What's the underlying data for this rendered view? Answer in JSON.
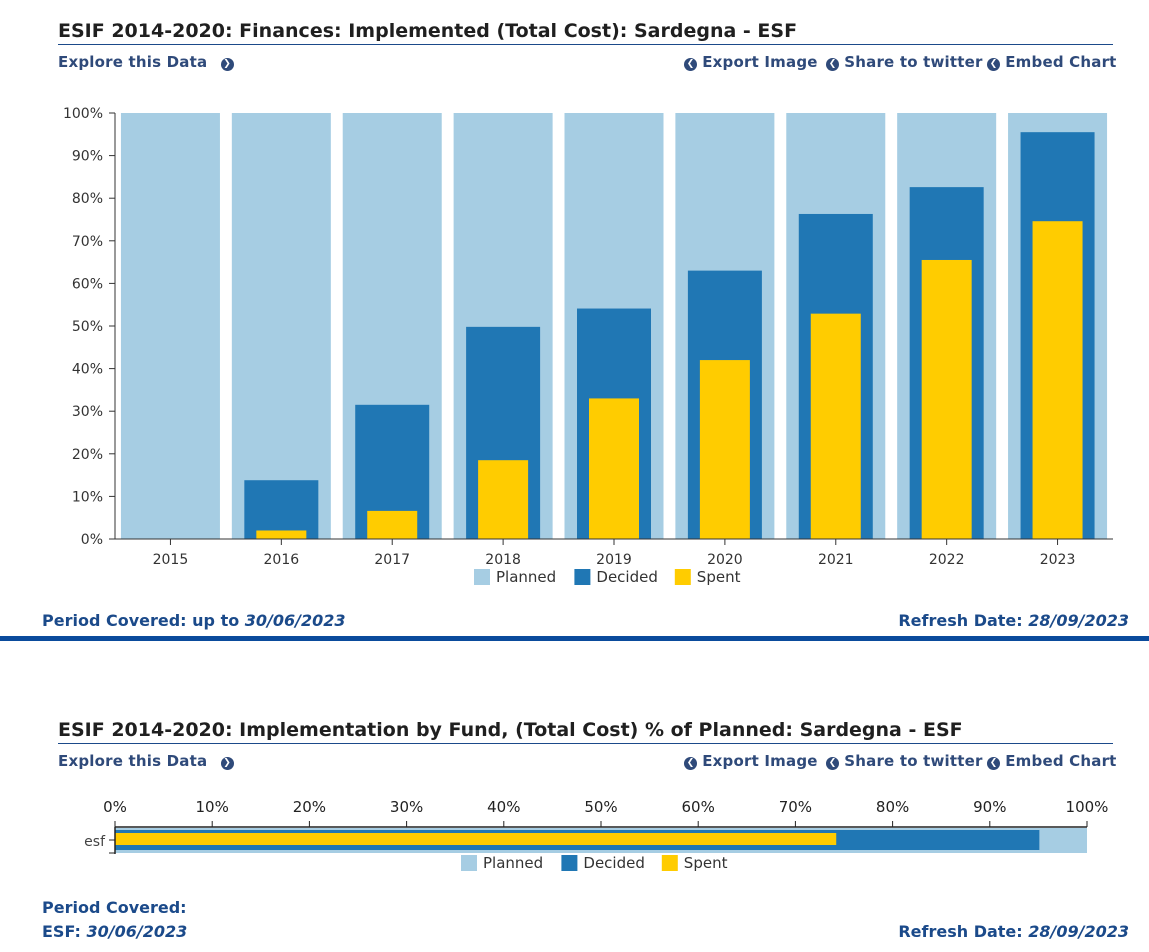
{
  "panel1": {
    "title": "ESIF 2014-2020: Finances: Implemented (Total Cost): Sardegna - ESF",
    "explore_label": "Explore this Data",
    "export_label": "Export Image",
    "share_label": "Share to twitter",
    "embed_label": "Embed Chart",
    "period_label": "Period Covered: up to",
    "period_value": "30/06/2023",
    "refresh_label": "Refresh Date:",
    "refresh_value": "28/09/2023"
  },
  "panel2": {
    "title": "ESIF 2014-2020: Implementation by Fund, (Total Cost) % of Planned: Sardegna - ESF",
    "explore_label": "Explore this Data",
    "export_label": "Export Image",
    "share_label": "Share to twitter",
    "embed_label": "Embed Chart",
    "period_label": "Period Covered:",
    "period_fund_label": "ESF:",
    "period_value": "30/06/2023",
    "refresh_label": "Refresh Date:",
    "refresh_value": "28/09/2023"
  },
  "colors": {
    "planned": "#a6cde3",
    "decided": "#2077b4",
    "spent": "#ffcc00",
    "accent": "#0a4b9c",
    "link": "#2f4a7a"
  },
  "icons": {
    "explore": "chevron-right-circle-icon",
    "action": "chevron-left-circle-icon"
  },
  "chart_data": [
    {
      "type": "bar",
      "categories": [
        "2015",
        "2016",
        "2017",
        "2018",
        "2019",
        "2020",
        "2021",
        "2022",
        "2023"
      ],
      "series": [
        {
          "name": "Planned",
          "values": [
            100,
            100,
            100,
            100,
            100,
            100,
            100,
            100,
            100
          ]
        },
        {
          "name": "Decided",
          "values": [
            0,
            13.8,
            31.5,
            49.8,
            54.1,
            63,
            76.3,
            82.6,
            95.5
          ]
        },
        {
          "name": "Spent",
          "values": [
            0,
            2,
            6.6,
            18.5,
            33,
            42,
            52.9,
            65.5,
            74.6
          ]
        }
      ],
      "yticks": [
        "0%",
        "10%",
        "20%",
        "30%",
        "40%",
        "50%",
        "60%",
        "70%",
        "80%",
        "90%",
        "100%"
      ],
      "ylim": [
        0,
        100
      ],
      "legend_position": "bottom",
      "grid": false
    },
    {
      "type": "bar",
      "orientation": "horizontal",
      "categories": [
        "esf"
      ],
      "series": [
        {
          "name": "Planned",
          "values": [
            100
          ]
        },
        {
          "name": "Decided",
          "values": [
            95.1
          ]
        },
        {
          "name": "Spent",
          "values": [
            74.2
          ]
        }
      ],
      "xticks": [
        "0%",
        "10%",
        "20%",
        "30%",
        "40%",
        "50%",
        "60%",
        "70%",
        "80%",
        "90%",
        "100%"
      ],
      "xlim": [
        0,
        100
      ],
      "legend_position": "bottom",
      "grid": false
    }
  ]
}
